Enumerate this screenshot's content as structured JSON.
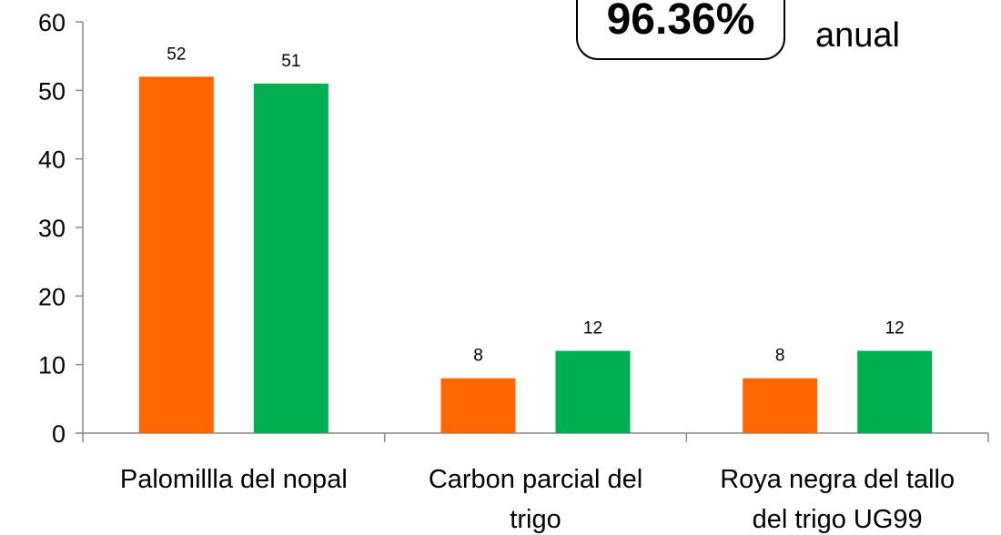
{
  "chart_data": {
    "type": "bar",
    "categories": [
      [
        "Palomillla del nopal"
      ],
      [
        "Carbon parcial del",
        "trigo"
      ],
      [
        "Roya negra del tallo",
        "del trigo UG99"
      ]
    ],
    "series": [
      {
        "color": "#ff6600",
        "values": [
          52,
          8,
          8
        ]
      },
      {
        "color": "#00b050",
        "values": [
          51,
          12,
          12
        ]
      }
    ],
    "ylim": [
      0,
      60
    ],
    "yticks": [
      0,
      10,
      20,
      30,
      40,
      50,
      60
    ],
    "data_labels": true,
    "grid": false,
    "legend": "none"
  },
  "callout": {
    "value": "96.36%",
    "caption": "anual"
  },
  "colors": {
    "axis": "#888888",
    "text": "#000000"
  }
}
